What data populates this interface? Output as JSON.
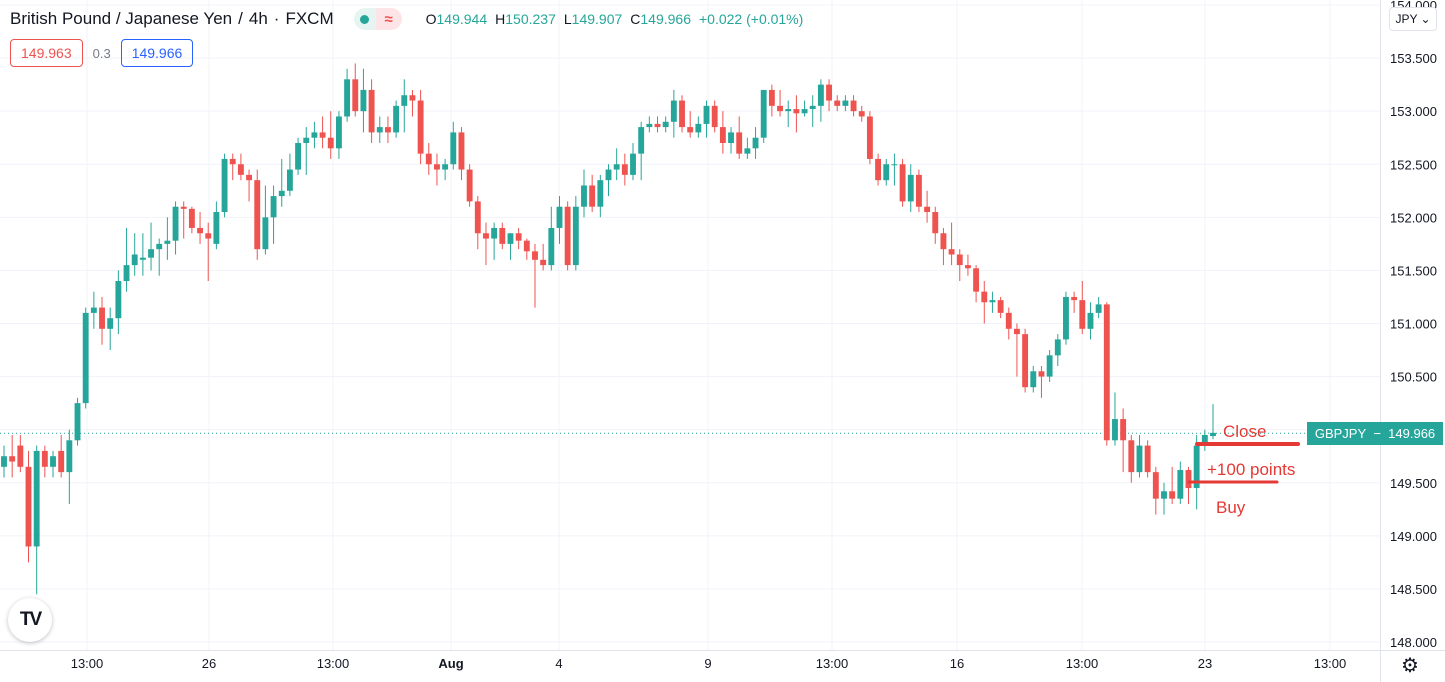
{
  "header": {
    "symbol": "British Pound / Japanese Yen",
    "interval": "4h",
    "exchange": "FXCM",
    "status_icon": "market-open-dot",
    "wave_icon": "≈",
    "open_label": "O",
    "open": "149.944",
    "high_label": "H",
    "high": "150.237",
    "low_label": "L",
    "low": "149.907",
    "close_label": "C",
    "close": "149.966",
    "change": "+0.022 (+0.01%)"
  },
  "quote": {
    "sell": "149.963",
    "spread": "0.3",
    "buy": "149.966"
  },
  "currency_button": {
    "label": "JPY",
    "icon": "chevron-down-icon"
  },
  "price_tag": {
    "symbol": "GBPJPY",
    "price": "149.966"
  },
  "annotations": {
    "close": "Close",
    "points": "+100 points",
    "buy": "Buy"
  },
  "colors": {
    "up": "#26a69a",
    "down": "#ef5350",
    "annotation": "#e53935",
    "grid": "#f0f3fa"
  },
  "chart_data": {
    "type": "candlestick",
    "title": "British Pound / Japanese Yen",
    "y_ticks": [
      "148.000",
      "148.500",
      "149.000",
      "149.500",
      "150.000",
      "150.500",
      "151.000",
      "151.500",
      "152.000",
      "152.500",
      "153.000",
      "153.500",
      "154.000"
    ],
    "x_ticks": [
      "13:00",
      "26",
      "13:00",
      "Aug",
      "4",
      "9",
      "13:00",
      "16",
      "13:00",
      "23",
      "13:00"
    ],
    "ylim": [
      148.0,
      154.0
    ],
    "last_price": 149.966,
    "candles": [
      {
        "o": 149.65,
        "h": 149.85,
        "l": 149.55,
        "c": 149.75
      },
      {
        "o": 149.75,
        "h": 149.95,
        "l": 149.55,
        "c": 149.7
      },
      {
        "o": 149.85,
        "h": 149.95,
        "l": 149.6,
        "c": 149.65
      },
      {
        "o": 149.65,
        "h": 149.8,
        "l": 148.75,
        "c": 148.9
      },
      {
        "o": 148.9,
        "h": 149.85,
        "l": 148.45,
        "c": 149.8
      },
      {
        "o": 149.8,
        "h": 149.85,
        "l": 149.55,
        "c": 149.65
      },
      {
        "o": 149.65,
        "h": 149.8,
        "l": 149.55,
        "c": 149.75
      },
      {
        "o": 149.8,
        "h": 149.95,
        "l": 149.55,
        "c": 149.6
      },
      {
        "o": 149.6,
        "h": 150.0,
        "l": 149.3,
        "c": 149.9
      },
      {
        "o": 149.9,
        "h": 150.3,
        "l": 149.85,
        "c": 150.25
      },
      {
        "o": 150.25,
        "h": 151.15,
        "l": 150.2,
        "c": 151.1
      },
      {
        "o": 151.1,
        "h": 151.3,
        "l": 150.95,
        "c": 151.15
      },
      {
        "o": 151.15,
        "h": 151.25,
        "l": 150.8,
        "c": 150.95
      },
      {
        "o": 150.95,
        "h": 151.15,
        "l": 150.75,
        "c": 151.05
      },
      {
        "o": 151.05,
        "h": 151.5,
        "l": 150.9,
        "c": 151.4
      },
      {
        "o": 151.4,
        "h": 151.9,
        "l": 151.3,
        "c": 151.55
      },
      {
        "o": 151.55,
        "h": 151.85,
        "l": 151.45,
        "c": 151.65
      },
      {
        "o": 151.6,
        "h": 151.85,
        "l": 151.45,
        "c": 151.62
      },
      {
        "o": 151.62,
        "h": 151.95,
        "l": 151.5,
        "c": 151.7
      },
      {
        "o": 151.7,
        "h": 151.8,
        "l": 151.45,
        "c": 151.75
      },
      {
        "o": 151.75,
        "h": 152.0,
        "l": 151.6,
        "c": 151.78
      },
      {
        "o": 151.78,
        "h": 152.15,
        "l": 151.65,
        "c": 152.1
      },
      {
        "o": 152.1,
        "h": 152.15,
        "l": 151.8,
        "c": 152.08
      },
      {
        "o": 152.08,
        "h": 152.1,
        "l": 151.85,
        "c": 151.9
      },
      {
        "o": 151.9,
        "h": 152.05,
        "l": 151.75,
        "c": 151.85
      },
      {
        "o": 151.85,
        "h": 151.95,
        "l": 151.4,
        "c": 151.8
      },
      {
        "o": 151.75,
        "h": 152.15,
        "l": 151.7,
        "c": 152.05
      },
      {
        "o": 152.05,
        "h": 152.6,
        "l": 152.0,
        "c": 152.55
      },
      {
        "o": 152.55,
        "h": 152.6,
        "l": 152.35,
        "c": 152.5
      },
      {
        "o": 152.5,
        "h": 152.6,
        "l": 152.35,
        "c": 152.4
      },
      {
        "o": 152.4,
        "h": 152.45,
        "l": 152.15,
        "c": 152.35
      },
      {
        "o": 152.35,
        "h": 152.45,
        "l": 151.6,
        "c": 151.7
      },
      {
        "o": 151.7,
        "h": 152.3,
        "l": 151.65,
        "c": 152.0
      },
      {
        "o": 152.0,
        "h": 152.3,
        "l": 151.75,
        "c": 152.2
      },
      {
        "o": 152.2,
        "h": 152.55,
        "l": 152.1,
        "c": 152.25
      },
      {
        "o": 152.25,
        "h": 152.6,
        "l": 152.2,
        "c": 152.45
      },
      {
        "o": 152.45,
        "h": 152.75,
        "l": 152.4,
        "c": 152.7
      },
      {
        "o": 152.7,
        "h": 152.85,
        "l": 152.4,
        "c": 152.75
      },
      {
        "o": 152.75,
        "h": 152.9,
        "l": 152.65,
        "c": 152.8
      },
      {
        "o": 152.8,
        "h": 152.95,
        "l": 152.65,
        "c": 152.75
      },
      {
        "o": 152.75,
        "h": 153.0,
        "l": 152.55,
        "c": 152.65
      },
      {
        "o": 152.65,
        "h": 153.0,
        "l": 152.55,
        "c": 152.95
      },
      {
        "o": 152.95,
        "h": 153.4,
        "l": 152.9,
        "c": 153.3
      },
      {
        "o": 153.3,
        "h": 153.45,
        "l": 152.95,
        "c": 153.0
      },
      {
        "o": 153.0,
        "h": 153.4,
        "l": 152.8,
        "c": 153.2
      },
      {
        "o": 153.2,
        "h": 153.3,
        "l": 152.7,
        "c": 152.8
      },
      {
        "o": 152.8,
        "h": 152.95,
        "l": 152.7,
        "c": 152.85
      },
      {
        "o": 152.85,
        "h": 152.95,
        "l": 152.7,
        "c": 152.8
      },
      {
        "o": 152.8,
        "h": 153.1,
        "l": 152.75,
        "c": 153.05
      },
      {
        "o": 153.05,
        "h": 153.3,
        "l": 152.8,
        "c": 153.15
      },
      {
        "o": 153.15,
        "h": 153.2,
        "l": 152.95,
        "c": 153.1
      },
      {
        "o": 153.1,
        "h": 153.2,
        "l": 152.5,
        "c": 152.6
      },
      {
        "o": 152.6,
        "h": 152.7,
        "l": 152.4,
        "c": 152.5
      },
      {
        "o": 152.5,
        "h": 152.6,
        "l": 152.3,
        "c": 152.45
      },
      {
        "o": 152.45,
        "h": 152.55,
        "l": 152.35,
        "c": 152.5
      },
      {
        "o": 152.5,
        "h": 152.9,
        "l": 152.45,
        "c": 152.8
      },
      {
        "o": 152.8,
        "h": 152.85,
        "l": 152.35,
        "c": 152.45
      },
      {
        "o": 152.45,
        "h": 152.5,
        "l": 152.1,
        "c": 152.15
      },
      {
        "o": 152.15,
        "h": 152.2,
        "l": 151.7,
        "c": 151.85
      },
      {
        "o": 151.85,
        "h": 151.95,
        "l": 151.55,
        "c": 151.8
      },
      {
        "o": 151.8,
        "h": 151.95,
        "l": 151.6,
        "c": 151.9
      },
      {
        "o": 151.9,
        "h": 151.95,
        "l": 151.7,
        "c": 151.75
      },
      {
        "o": 151.75,
        "h": 151.85,
        "l": 151.6,
        "c": 151.85
      },
      {
        "o": 151.85,
        "h": 151.9,
        "l": 151.7,
        "c": 151.78
      },
      {
        "o": 151.78,
        "h": 151.8,
        "l": 151.6,
        "c": 151.68
      },
      {
        "o": 151.68,
        "h": 151.75,
        "l": 151.15,
        "c": 151.6
      },
      {
        "o": 151.6,
        "h": 151.75,
        "l": 151.5,
        "c": 151.55
      },
      {
        "o": 151.55,
        "h": 152.1,
        "l": 151.5,
        "c": 151.9
      },
      {
        "o": 151.9,
        "h": 152.2,
        "l": 151.75,
        "c": 152.1
      },
      {
        "o": 152.1,
        "h": 152.15,
        "l": 151.5,
        "c": 151.55
      },
      {
        "o": 151.55,
        "h": 152.2,
        "l": 151.5,
        "c": 152.1
      },
      {
        "o": 152.1,
        "h": 152.45,
        "l": 152.0,
        "c": 152.3
      },
      {
        "o": 152.3,
        "h": 152.4,
        "l": 152.05,
        "c": 152.1
      },
      {
        "o": 152.1,
        "h": 152.4,
        "l": 152.0,
        "c": 152.35
      },
      {
        "o": 152.35,
        "h": 152.5,
        "l": 152.2,
        "c": 152.45
      },
      {
        "o": 152.45,
        "h": 152.65,
        "l": 152.35,
        "c": 152.5
      },
      {
        "o": 152.5,
        "h": 152.6,
        "l": 152.3,
        "c": 152.4
      },
      {
        "o": 152.4,
        "h": 152.7,
        "l": 152.35,
        "c": 152.6
      },
      {
        "o": 152.6,
        "h": 152.9,
        "l": 152.35,
        "c": 152.85
      },
      {
        "o": 152.85,
        "h": 152.95,
        "l": 152.8,
        "c": 152.88
      },
      {
        "o": 152.88,
        "h": 152.95,
        "l": 152.8,
        "c": 152.85
      },
      {
        "o": 152.85,
        "h": 152.95,
        "l": 152.8,
        "c": 152.9
      },
      {
        "o": 152.9,
        "h": 153.2,
        "l": 152.75,
        "c": 153.1
      },
      {
        "o": 153.1,
        "h": 153.15,
        "l": 152.8,
        "c": 152.85
      },
      {
        "o": 152.85,
        "h": 153.0,
        "l": 152.75,
        "c": 152.8
      },
      {
        "o": 152.8,
        "h": 152.95,
        "l": 152.75,
        "c": 152.88
      },
      {
        "o": 152.88,
        "h": 153.1,
        "l": 152.75,
        "c": 153.05
      },
      {
        "o": 153.05,
        "h": 153.1,
        "l": 152.8,
        "c": 152.85
      },
      {
        "o": 152.85,
        "h": 153.0,
        "l": 152.6,
        "c": 152.7
      },
      {
        "o": 152.7,
        "h": 152.85,
        "l": 152.6,
        "c": 152.8
      },
      {
        "o": 152.8,
        "h": 152.95,
        "l": 152.55,
        "c": 152.6
      },
      {
        "o": 152.6,
        "h": 152.75,
        "l": 152.55,
        "c": 152.65
      },
      {
        "o": 152.65,
        "h": 152.85,
        "l": 152.55,
        "c": 152.75
      },
      {
        "o": 152.75,
        "h": 153.2,
        "l": 152.7,
        "c": 153.2
      },
      {
        "o": 153.2,
        "h": 153.25,
        "l": 152.95,
        "c": 153.05
      },
      {
        "o": 153.05,
        "h": 153.2,
        "l": 152.95,
        "c": 153.0
      },
      {
        "o": 153.0,
        "h": 153.1,
        "l": 152.85,
        "c": 153.02
      },
      {
        "o": 153.02,
        "h": 153.15,
        "l": 152.8,
        "c": 152.98
      },
      {
        "o": 152.98,
        "h": 153.1,
        "l": 152.95,
        "c": 153.02
      },
      {
        "o": 153.02,
        "h": 153.15,
        "l": 152.85,
        "c": 153.05
      },
      {
        "o": 153.05,
        "h": 153.3,
        "l": 152.9,
        "c": 153.25
      },
      {
        "o": 153.25,
        "h": 153.3,
        "l": 153.0,
        "c": 153.1
      },
      {
        "o": 153.1,
        "h": 153.15,
        "l": 153.0,
        "c": 153.05
      },
      {
        "o": 153.05,
        "h": 153.15,
        "l": 153.0,
        "c": 153.1
      },
      {
        "o": 153.1,
        "h": 153.15,
        "l": 152.95,
        "c": 153.0
      },
      {
        "o": 153.0,
        "h": 153.05,
        "l": 152.9,
        "c": 152.95
      },
      {
        "o": 152.95,
        "h": 153.0,
        "l": 152.5,
        "c": 152.55
      },
      {
        "o": 152.55,
        "h": 152.6,
        "l": 152.3,
        "c": 152.35
      },
      {
        "o": 152.35,
        "h": 152.55,
        "l": 152.3,
        "c": 152.5
      },
      {
        "o": 152.5,
        "h": 152.6,
        "l": 152.3,
        "c": 152.5
      },
      {
        "o": 152.5,
        "h": 152.55,
        "l": 152.1,
        "c": 152.15
      },
      {
        "o": 152.15,
        "h": 152.5,
        "l": 152.05,
        "c": 152.4
      },
      {
        "o": 152.4,
        "h": 152.45,
        "l": 152.05,
        "c": 152.1
      },
      {
        "o": 152.1,
        "h": 152.25,
        "l": 151.95,
        "c": 152.05
      },
      {
        "o": 152.05,
        "h": 152.1,
        "l": 151.75,
        "c": 151.85
      },
      {
        "o": 151.85,
        "h": 151.9,
        "l": 151.55,
        "c": 151.7
      },
      {
        "o": 151.7,
        "h": 151.95,
        "l": 151.55,
        "c": 151.65
      },
      {
        "o": 151.65,
        "h": 151.7,
        "l": 151.4,
        "c": 151.55
      },
      {
        "o": 151.55,
        "h": 151.65,
        "l": 151.45,
        "c": 151.52
      },
      {
        "o": 151.52,
        "h": 151.55,
        "l": 151.2,
        "c": 151.3
      },
      {
        "o": 151.3,
        "h": 151.4,
        "l": 151.0,
        "c": 151.2
      },
      {
        "o": 151.2,
        "h": 151.3,
        "l": 151.1,
        "c": 151.22
      },
      {
        "o": 151.22,
        "h": 151.25,
        "l": 151.05,
        "c": 151.1
      },
      {
        "o": 151.1,
        "h": 151.15,
        "l": 150.85,
        "c": 150.95
      },
      {
        "o": 150.95,
        "h": 151.0,
        "l": 150.5,
        "c": 150.9
      },
      {
        "o": 150.9,
        "h": 150.95,
        "l": 150.35,
        "c": 150.4
      },
      {
        "o": 150.4,
        "h": 150.6,
        "l": 150.35,
        "c": 150.55
      },
      {
        "o": 150.55,
        "h": 150.6,
        "l": 150.3,
        "c": 150.5
      },
      {
        "o": 150.5,
        "h": 150.75,
        "l": 150.45,
        "c": 150.7
      },
      {
        "o": 150.7,
        "h": 150.9,
        "l": 150.6,
        "c": 150.85
      },
      {
        "o": 150.85,
        "h": 151.3,
        "l": 150.8,
        "c": 151.25
      },
      {
        "o": 151.25,
        "h": 151.3,
        "l": 151.1,
        "c": 151.22
      },
      {
        "o": 151.22,
        "h": 151.4,
        "l": 150.9,
        "c": 150.95
      },
      {
        "o": 150.95,
        "h": 151.2,
        "l": 150.85,
        "c": 151.1
      },
      {
        "o": 151.1,
        "h": 151.25,
        "l": 151.05,
        "c": 151.18
      },
      {
        "o": 151.18,
        "h": 151.2,
        "l": 149.85,
        "c": 149.9
      },
      {
        "o": 149.9,
        "h": 150.35,
        "l": 149.85,
        "c": 150.1
      },
      {
        "o": 150.1,
        "h": 150.2,
        "l": 149.6,
        "c": 149.9
      },
      {
        "o": 149.9,
        "h": 149.95,
        "l": 149.5,
        "c": 149.6
      },
      {
        "o": 149.6,
        "h": 149.95,
        "l": 149.55,
        "c": 149.85
      },
      {
        "o": 149.85,
        "h": 149.9,
        "l": 149.55,
        "c": 149.6
      },
      {
        "o": 149.6,
        "h": 149.65,
        "l": 149.2,
        "c": 149.35
      },
      {
        "o": 149.35,
        "h": 149.5,
        "l": 149.2,
        "c": 149.42
      },
      {
        "o": 149.42,
        "h": 149.65,
        "l": 149.3,
        "c": 149.35
      },
      {
        "o": 149.35,
        "h": 149.7,
        "l": 149.3,
        "c": 149.62
      },
      {
        "o": 149.62,
        "h": 149.65,
        "l": 149.3,
        "c": 149.45
      },
      {
        "o": 149.45,
        "h": 149.95,
        "l": 149.25,
        "c": 149.85
      },
      {
        "o": 149.85,
        "h": 150.0,
        "l": 149.8,
        "c": 149.95
      },
      {
        "o": 149.94,
        "h": 150.24,
        "l": 149.91,
        "c": 149.97
      }
    ]
  }
}
